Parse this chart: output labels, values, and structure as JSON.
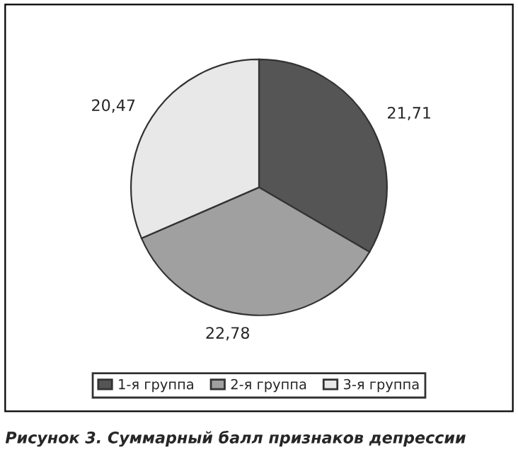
{
  "chart_data": {
    "type": "pie",
    "title": "Рисунок 3. Суммарный балл признаков депрессии",
    "categories": [
      "1-я группа",
      "2-я группа",
      "3-я группа"
    ],
    "values": [
      21.71,
      22.78,
      20.47
    ],
    "colors": [
      "#555555",
      "#a0a0a0",
      "#e8e8e8"
    ],
    "value_labels": [
      "21,71",
      "22,78",
      "20,47"
    ],
    "legend": "bottom"
  }
}
